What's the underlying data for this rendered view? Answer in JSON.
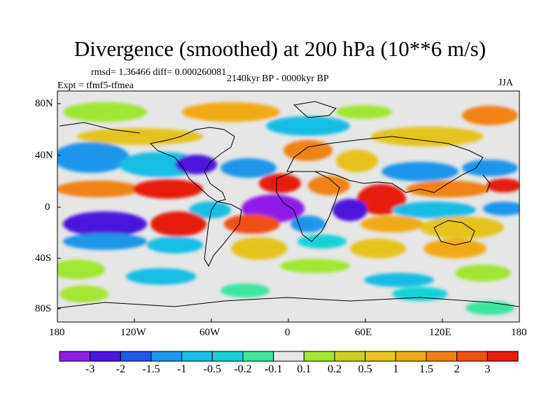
{
  "title": "Divergence (smoothed) at 200 hPa (10**6 m/s)",
  "stats": "rmsd= 1.36466 diff= 0.000260081",
  "experiment": "Expt = tfmf5-tfmea",
  "period": "2140kyr BP - 0000kyr BP",
  "season": "JJA",
  "axes": {
    "lat_labels": [
      "80N",
      "40N",
      "0",
      "40S",
      "80S"
    ],
    "lon_labels": [
      "180",
      "120W",
      "60W",
      "0",
      "60E",
      "120E",
      "180"
    ]
  },
  "colorbar": {
    "colors": [
      "#8e1ee6",
      "#4b12dc",
      "#1e5aeb",
      "#1e96eb",
      "#14bee6",
      "#14d2d7",
      "#3ce6a0",
      "#e6e6e6",
      "#a0e632",
      "#c8d21e",
      "#e6c31e",
      "#f0aa14",
      "#f08214",
      "#f05014",
      "#e61e0a"
    ],
    "labels": [
      "-3",
      "-2",
      "-1.5",
      "-1",
      "-0.5",
      "-0.2",
      "-0.1",
      "0.1",
      "0.2",
      "0.5",
      "1",
      "1.5",
      "2",
      "3"
    ]
  }
}
